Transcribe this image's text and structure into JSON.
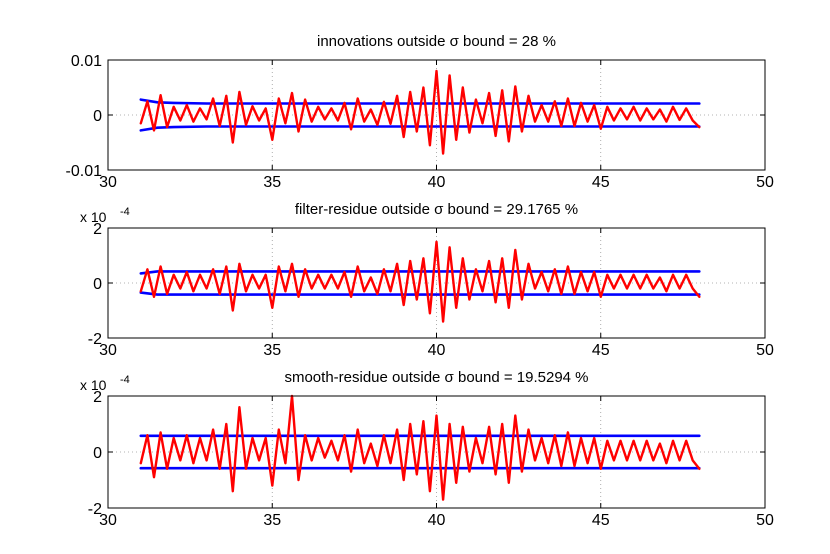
{
  "chart_data": [
    {
      "type": "line",
      "title": "innovations outside σ bound = 28 %",
      "xlim": [
        30,
        50
      ],
      "ylim": [
        -0.01,
        0.01
      ],
      "xticks": [
        30,
        35,
        40,
        45,
        50
      ],
      "xtick_labels": [
        "30",
        "35",
        "40",
        "45",
        "50"
      ],
      "yticks": [
        -0.01,
        0,
        0.01
      ],
      "ytick_labels": [
        "-0.01",
        "0",
        "0.01"
      ],
      "multiplier": "",
      "multiplier_exponent": "",
      "grid": true,
      "series": [
        {
          "role": "upper-bound",
          "color": "#0000ff",
          "x": [
            31,
            31.5,
            32,
            33,
            35,
            38,
            42,
            48
          ],
          "y": [
            0.0028,
            0.0023,
            0.0022,
            0.0021,
            0.0021,
            0.0021,
            0.0021,
            0.0021
          ]
        },
        {
          "role": "lower-bound",
          "color": "#0000ff",
          "x": [
            31,
            31.5,
            32,
            33,
            35,
            38,
            42,
            48
          ],
          "y": [
            -0.0028,
            -0.0023,
            -0.0022,
            -0.0021,
            -0.0021,
            -0.0021,
            -0.0021,
            -0.0021
          ]
        },
        {
          "role": "signal",
          "color": "#ff0000",
          "x": [
            31.0,
            31.2,
            31.4,
            31.6,
            31.8,
            32.0,
            32.2,
            32.4,
            32.6,
            32.8,
            33.0,
            33.2,
            33.4,
            33.6,
            33.8,
            34.0,
            34.2,
            34.4,
            34.6,
            34.8,
            35.0,
            35.2,
            35.4,
            35.6,
            35.8,
            36.0,
            36.2,
            36.4,
            36.6,
            36.8,
            37.0,
            37.2,
            37.4,
            37.6,
            37.8,
            38.0,
            38.2,
            38.4,
            38.6,
            38.8,
            39.0,
            39.2,
            39.4,
            39.6,
            39.8,
            40.0,
            40.2,
            40.4,
            40.6,
            40.8,
            41.0,
            41.2,
            41.4,
            41.6,
            41.8,
            42.0,
            42.2,
            42.4,
            42.6,
            42.8,
            43.0,
            43.2,
            43.4,
            43.6,
            43.8,
            44.0,
            44.2,
            44.4,
            44.6,
            44.8,
            45.0,
            45.2,
            45.4,
            45.6,
            45.8,
            46.0,
            46.2,
            46.4,
            46.6,
            46.8,
            47.0,
            47.2,
            47.4,
            47.6,
            47.8,
            48.0
          ],
          "y": [
            -0.0015,
            0.0025,
            -0.0028,
            0.0036,
            -0.0022,
            0.0015,
            -0.001,
            0.0018,
            -0.0012,
            0.0012,
            -0.0008,
            0.003,
            -0.002,
            0.0035,
            -0.005,
            0.0042,
            -0.0018,
            0.0016,
            -0.001,
            0.0012,
            -0.0045,
            0.003,
            -0.0015,
            0.004,
            -0.003,
            0.0028,
            -0.0012,
            0.0015,
            -0.0008,
            0.0012,
            -0.001,
            0.0022,
            -0.0026,
            0.003,
            -0.0012,
            0.001,
            -0.0018,
            0.0024,
            -0.0016,
            0.0035,
            -0.004,
            0.0042,
            -0.003,
            0.005,
            -0.0055,
            0.008,
            -0.007,
            0.0072,
            -0.0045,
            0.005,
            -0.0032,
            0.0028,
            -0.0015,
            0.004,
            -0.0038,
            0.0045,
            -0.0048,
            0.0052,
            -0.003,
            0.0035,
            -0.0012,
            0.0018,
            -0.0012,
            0.0025,
            -0.002,
            0.003,
            -0.002,
            0.0022,
            -0.0012,
            0.0018,
            -0.0025,
            0.0015,
            -0.001,
            0.0012,
            -0.0008,
            0.0015,
            -0.001,
            0.0012,
            -0.0008,
            0.001,
            -0.0012,
            0.0015,
            -0.0009,
            0.0012,
            -0.001,
            -0.0022
          ]
        }
      ]
    },
    {
      "type": "line",
      "title": "filter-residue outside σ bound = 29.1765 %",
      "xlim": [
        30,
        50
      ],
      "ylim": [
        -2,
        2
      ],
      "xticks": [
        30,
        35,
        40,
        45,
        50
      ],
      "xtick_labels": [
        "30",
        "35",
        "40",
        "45",
        "50"
      ],
      "yticks": [
        -2,
        0,
        2
      ],
      "ytick_labels": [
        "-2",
        "0",
        "2"
      ],
      "multiplier": "x 10",
      "multiplier_exponent": "-4",
      "grid": true,
      "series": [
        {
          "role": "upper-bound",
          "color": "#0000ff",
          "x": [
            31,
            31.5,
            32,
            33,
            35,
            38,
            42,
            48
          ],
          "y": [
            0.35,
            0.42,
            0.42,
            0.42,
            0.42,
            0.42,
            0.42,
            0.42
          ]
        },
        {
          "role": "lower-bound",
          "color": "#0000ff",
          "x": [
            31,
            31.5,
            32,
            33,
            35,
            38,
            42,
            48
          ],
          "y": [
            -0.35,
            -0.42,
            -0.42,
            -0.42,
            -0.42,
            -0.42,
            -0.42,
            -0.42
          ]
        },
        {
          "role": "signal",
          "color": "#ff0000",
          "x": [
            31.0,
            31.2,
            31.4,
            31.6,
            31.8,
            32.0,
            32.2,
            32.4,
            32.6,
            32.8,
            33.0,
            33.2,
            33.4,
            33.6,
            33.8,
            34.0,
            34.2,
            34.4,
            34.6,
            34.8,
            35.0,
            35.2,
            35.4,
            35.6,
            35.8,
            36.0,
            36.2,
            36.4,
            36.6,
            36.8,
            37.0,
            37.2,
            37.4,
            37.6,
            37.8,
            38.0,
            38.2,
            38.4,
            38.6,
            38.8,
            39.0,
            39.2,
            39.4,
            39.6,
            39.8,
            40.0,
            40.2,
            40.4,
            40.6,
            40.8,
            41.0,
            41.2,
            41.4,
            41.6,
            41.8,
            42.0,
            42.2,
            42.4,
            42.6,
            42.8,
            43.0,
            43.2,
            43.4,
            43.6,
            43.8,
            44.0,
            44.2,
            44.4,
            44.6,
            44.8,
            45.0,
            45.2,
            45.4,
            45.6,
            45.8,
            46.0,
            46.2,
            46.4,
            46.6,
            46.8,
            47.0,
            47.2,
            47.4,
            47.6,
            47.8,
            48.0
          ],
          "y": [
            -0.3,
            0.5,
            -0.5,
            0.6,
            -0.4,
            0.3,
            -0.2,
            0.4,
            -0.3,
            0.3,
            -0.2,
            0.5,
            -0.4,
            0.6,
            -1.0,
            0.7,
            -0.3,
            0.3,
            -0.2,
            0.3,
            -0.9,
            0.6,
            -0.3,
            0.7,
            -0.5,
            0.5,
            -0.2,
            0.3,
            -0.2,
            0.3,
            -0.2,
            0.4,
            -0.5,
            0.6,
            -0.3,
            0.2,
            -0.4,
            0.5,
            -0.3,
            0.7,
            -0.8,
            0.8,
            -0.6,
            0.9,
            -1.1,
            1.5,
            -1.4,
            1.3,
            -0.9,
            0.9,
            -0.6,
            0.5,
            -0.3,
            0.8,
            -0.7,
            0.9,
            -0.9,
            1.2,
            -0.6,
            0.7,
            -0.2,
            0.4,
            -0.3,
            0.5,
            -0.4,
            0.6,
            -0.4,
            0.4,
            -0.3,
            0.4,
            -0.5,
            0.3,
            -0.2,
            0.3,
            -0.2,
            0.3,
            -0.2,
            0.3,
            -0.2,
            0.2,
            -0.3,
            0.3,
            -0.2,
            0.3,
            -0.2,
            -0.5
          ]
        }
      ]
    },
    {
      "type": "line",
      "title": "smooth-residue outside σ bound = 19.5294 %",
      "xlim": [
        30,
        50
      ],
      "ylim": [
        -2,
        2
      ],
      "xticks": [
        30,
        35,
        40,
        45,
        50
      ],
      "xtick_labels": [
        "30",
        "35",
        "40",
        "45",
        "50"
      ],
      "yticks": [
        -2,
        0,
        2
      ],
      "ytick_labels": [
        "-2",
        "0",
        "2"
      ],
      "multiplier": "x 10",
      "multiplier_exponent": "-4",
      "grid": true,
      "series": [
        {
          "role": "upper-bound",
          "color": "#0000ff",
          "x": [
            31,
            48
          ],
          "y": [
            0.58,
            0.58
          ]
        },
        {
          "role": "lower-bound",
          "color": "#0000ff",
          "x": [
            31,
            48
          ],
          "y": [
            -0.58,
            -0.58
          ]
        },
        {
          "role": "signal",
          "color": "#ff0000",
          "x": [
            31.0,
            31.2,
            31.4,
            31.6,
            31.8,
            32.0,
            32.2,
            32.4,
            32.6,
            32.8,
            33.0,
            33.2,
            33.4,
            33.6,
            33.8,
            34.0,
            34.2,
            34.4,
            34.6,
            34.8,
            35.0,
            35.2,
            35.4,
            35.6,
            35.8,
            36.0,
            36.2,
            36.4,
            36.6,
            36.8,
            37.0,
            37.2,
            37.4,
            37.6,
            37.8,
            38.0,
            38.2,
            38.4,
            38.6,
            38.8,
            39.0,
            39.2,
            39.4,
            39.6,
            39.8,
            40.0,
            40.2,
            40.4,
            40.6,
            40.8,
            41.0,
            41.2,
            41.4,
            41.6,
            41.8,
            42.0,
            42.2,
            42.4,
            42.6,
            42.8,
            43.0,
            43.2,
            43.4,
            43.6,
            43.8,
            44.0,
            44.2,
            44.4,
            44.6,
            44.8,
            45.0,
            45.2,
            45.4,
            45.6,
            45.8,
            46.0,
            46.2,
            46.4,
            46.6,
            46.8,
            47.0,
            47.2,
            47.4,
            47.6,
            47.8,
            48.0
          ],
          "y": [
            -0.4,
            0.6,
            -0.9,
            0.7,
            -0.6,
            0.5,
            -0.3,
            0.6,
            -0.4,
            0.5,
            -0.3,
            0.8,
            -0.6,
            1.0,
            -1.4,
            1.6,
            -0.6,
            0.5,
            -0.3,
            0.5,
            -1.2,
            0.8,
            -0.4,
            2.0,
            -1.0,
            0.6,
            -0.3,
            0.5,
            -0.2,
            0.4,
            -0.3,
            0.6,
            -0.7,
            0.8,
            -0.4,
            0.3,
            -0.5,
            0.6,
            -0.4,
            0.8,
            -1.0,
            1.0,
            -0.8,
            1.1,
            -1.4,
            1.3,
            -1.7,
            1.0,
            -1.1,
            0.9,
            -0.7,
            0.5,
            -0.4,
            0.9,
            -0.8,
            1.0,
            -1.1,
            1.3,
            -0.7,
            0.8,
            -0.3,
            0.5,
            -0.4,
            0.6,
            -0.5,
            0.7,
            -0.5,
            0.5,
            -0.4,
            0.5,
            -0.6,
            0.4,
            -0.3,
            0.4,
            -0.3,
            0.4,
            -0.3,
            0.4,
            -0.3,
            0.3,
            -0.4,
            0.4,
            -0.3,
            0.4,
            -0.3,
            -0.6
          ]
        }
      ]
    }
  ]
}
